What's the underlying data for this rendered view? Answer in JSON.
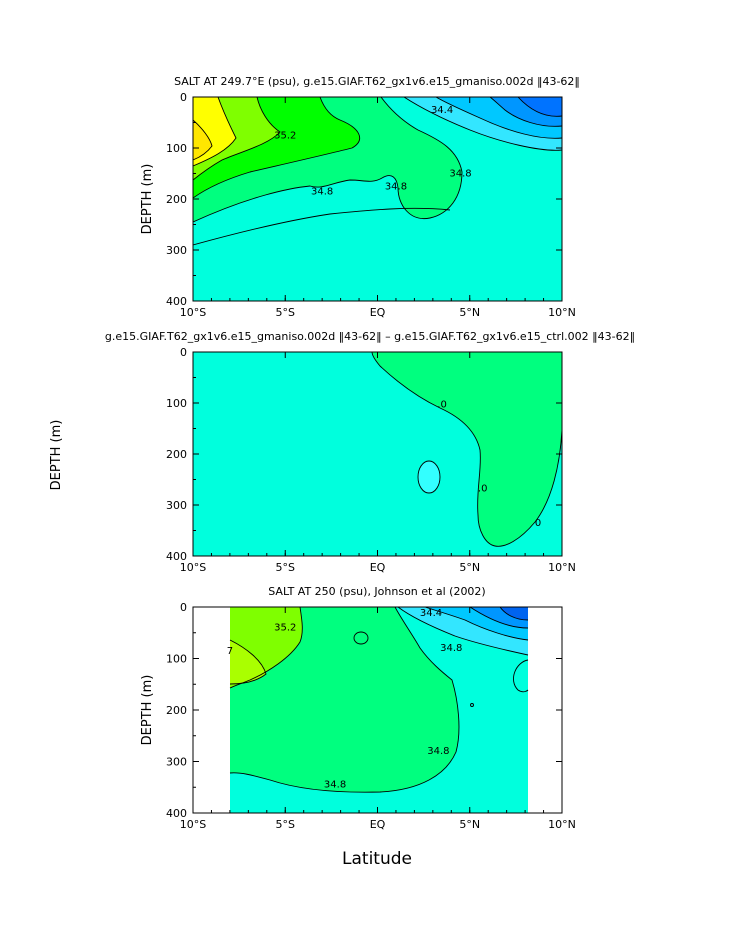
{
  "figure": {
    "xlabel": "Latitude"
  },
  "chart_data": [
    {
      "type": "heatmap",
      "title": "SALT AT 249.7°E (psu), g.e15.GIAF.T62_gx1v6.e15_gmaniso.002d ‖43-62‖",
      "ylabel": "DEPTH (m)",
      "xlabel": "",
      "xlim": [
        -10,
        10
      ],
      "ylim": [
        400,
        0
      ],
      "x_ticks": [
        "10°S",
        "5°S",
        "EQ",
        "5°N",
        "10°N"
      ],
      "y_ticks": [
        "0",
        "100",
        "200",
        "300",
        "400"
      ],
      "contour_labels": [
        {
          "lat": 3.5,
          "depth": 25,
          "value": "34.4"
        },
        {
          "lat": -5.0,
          "depth": 75,
          "value": "35.2"
        },
        {
          "lat": 4.5,
          "depth": 150,
          "value": "34.8"
        },
        {
          "lat": 1.0,
          "depth": 175,
          "value": "34.8"
        },
        {
          "lat": -3.0,
          "depth": 185,
          "value": "34.8"
        }
      ],
      "fill_colors": [
        "#00ffdd",
        "#00ff7f",
        "#00ff00",
        "#7fff00",
        "#ffff00",
        "#33e6ff",
        "#00c8ff",
        "#0080ff"
      ]
    },
    {
      "type": "heatmap",
      "title": "g.e15.GIAF.T62_gx1v6.e15_gmaniso.002d ‖43-62‖ – g.e15.GIAF.T62_gx1v6.e15_ctrl.002 ‖43-62‖",
      "ylabel": "DEPTH (m)",
      "xlabel": "",
      "xlim": [
        -10,
        10
      ],
      "ylim": [
        400,
        0
      ],
      "x_ticks": [
        "10°S",
        "5°S",
        "EQ",
        "5°N",
        "10°N"
      ],
      "y_ticks": [
        "0",
        "100",
        "200",
        "300",
        "400"
      ],
      "contour_labels": [
        {
          "lat": 3.5,
          "depth": 103,
          "value": ".0"
        },
        {
          "lat": 5.7,
          "depth": 268,
          "value": ".0"
        },
        {
          "lat": 8.7,
          "depth": 335,
          "value": "0"
        }
      ],
      "fill_colors": [
        "#00ffdd",
        "#00ff7f",
        "#33ffff"
      ]
    },
    {
      "type": "heatmap",
      "title": "SALT AT 250 (psu), Johnson et al (2002)",
      "ylabel": "DEPTH (m)",
      "xlabel": "Latitude",
      "xlim": [
        -10,
        10
      ],
      "ylim": [
        400,
        0
      ],
      "x_ticks": [
        "10°S",
        "5°S",
        "EQ",
        "5°N",
        "10°N"
      ],
      "y_ticks": [
        "0",
        "100",
        "200",
        "300",
        "400"
      ],
      "contour_labels": [
        {
          "lat": 2.9,
          "depth": 12,
          "value": "34.4"
        },
        {
          "lat": -5.0,
          "depth": 40,
          "value": "35.2"
        },
        {
          "lat": -8.0,
          "depth": 85,
          "value": "7"
        },
        {
          "lat": 4.0,
          "depth": 80,
          "value": "34.8"
        },
        {
          "lat": 3.3,
          "depth": 280,
          "value": "34.8"
        },
        {
          "lat": -2.3,
          "depth": 345,
          "value": "34.8"
        }
      ],
      "fill_colors": [
        "#00ffdd",
        "#00ff7f",
        "#7fff00",
        "#33e6ff",
        "#00c8ff",
        "#0080ff",
        "#ffffff"
      ]
    }
  ]
}
